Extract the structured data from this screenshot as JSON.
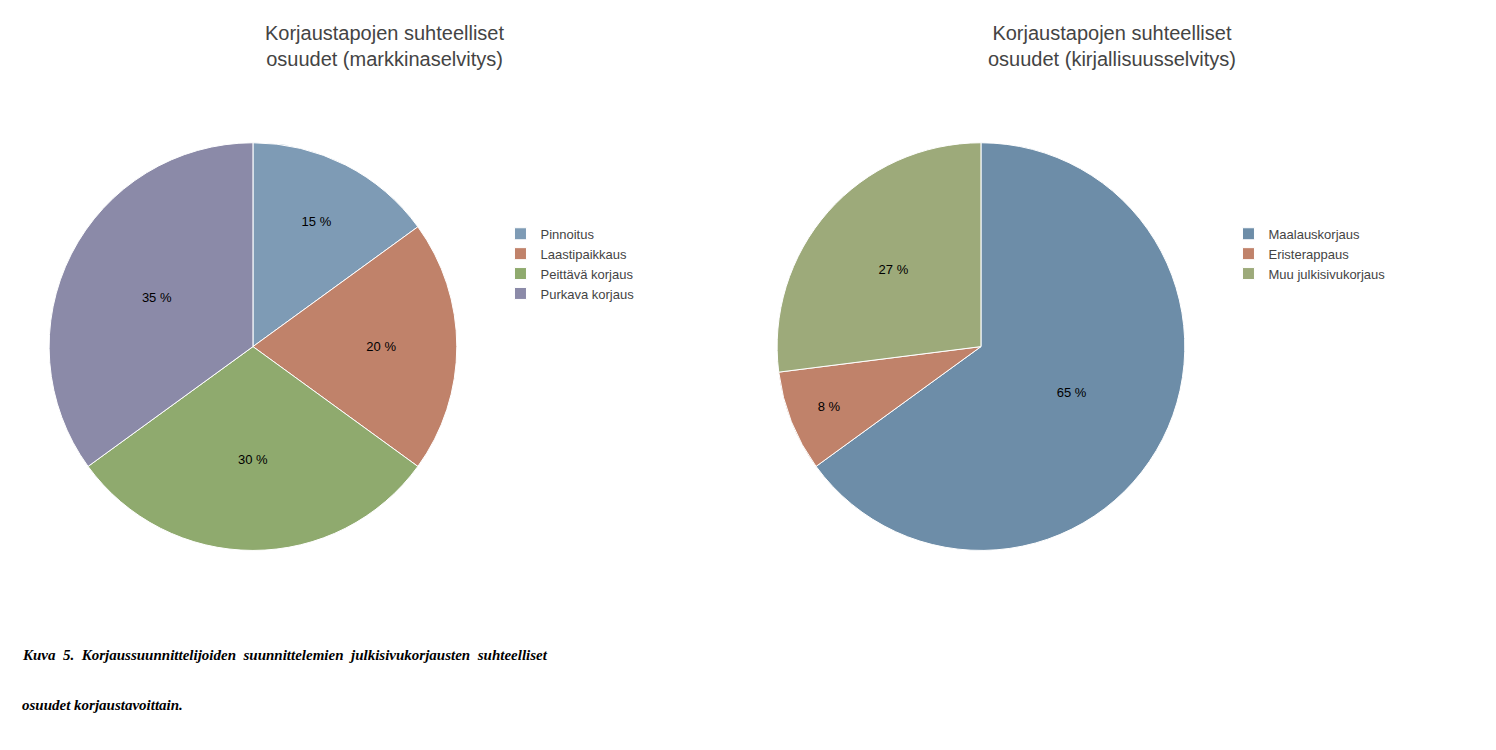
{
  "chart_data": [
    {
      "type": "pie",
      "title": "Korjaustapojen suhteelliset\nosuudet (markkinaselvitys)",
      "categories": [
        "Pinnoitus",
        "Laastipaikkaus",
        "Peittävä korjaus",
        "Purkava korjaus"
      ],
      "values": [
        15,
        20,
        30,
        35
      ],
      "value_labels": [
        "15 %",
        "20 %",
        "30 %",
        "35 %"
      ],
      "colors": [
        "#7e9bb5",
        "#c0826a",
        "#8faa6e",
        "#8b8aa8"
      ],
      "data_labels": true
    },
    {
      "type": "pie",
      "title": "Korjaustapojen suhteelliset\nosuudet (kirjallisuusselvitys)",
      "categories": [
        "Maalauskorjaus",
        "Eristerappaus",
        "Muu julkisivukorjaus"
      ],
      "values": [
        65,
        8,
        27
      ],
      "value_labels": [
        "65 %",
        "8 %",
        "27 %"
      ],
      "colors": [
        "#6d8da8",
        "#c0826a",
        "#9daa7a"
      ],
      "data_labels": true
    }
  ],
  "caption": [
    "Kuva  5.  Korjaussuunnittelijoiden  suunnittelemien  julkisivukorjausten  suhteelliset",
    "osuudet korjaustavoittain."
  ]
}
